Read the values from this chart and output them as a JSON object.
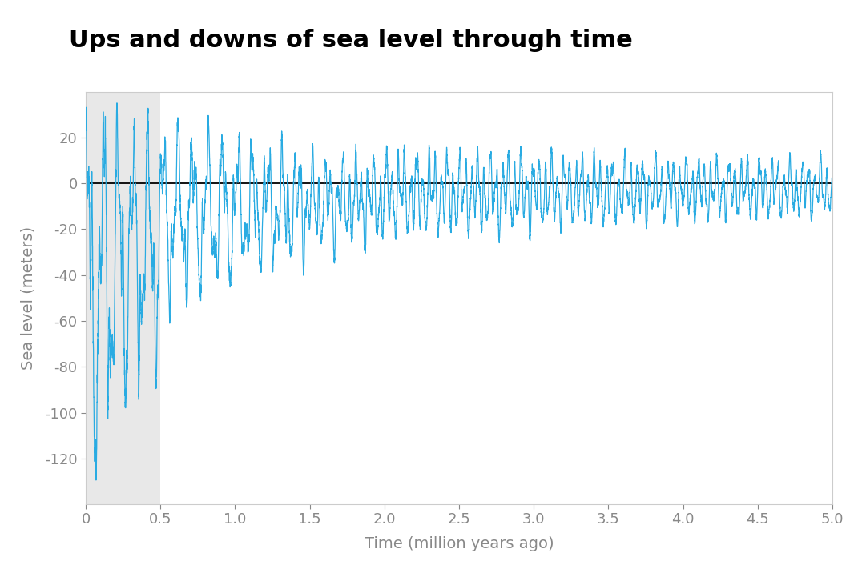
{
  "title": "Ups and downs of sea level through time",
  "xlabel": "Time (million years ago)",
  "ylabel": "Sea level (meters)",
  "xlim": [
    0,
    5.0
  ],
  "ylim": [
    -140,
    40
  ],
  "xticks": [
    0,
    0.5,
    1.0,
    1.5,
    2.0,
    2.5,
    3.0,
    3.5,
    4.0,
    4.5,
    5.0
  ],
  "yticks": [
    -120,
    -100,
    -80,
    -60,
    -40,
    -20,
    0,
    20
  ],
  "line_color": "#29ABE2",
  "zero_line_color": "#000000",
  "shade_xmin": 0,
  "shade_xmax": 0.5,
  "shade_color": "#E8E8E8",
  "title_fontsize": 22,
  "label_fontsize": 14,
  "tick_fontsize": 13,
  "line_width": 0.9,
  "background_color": "#FFFFFF",
  "seed": 42,
  "n_points": 8000
}
